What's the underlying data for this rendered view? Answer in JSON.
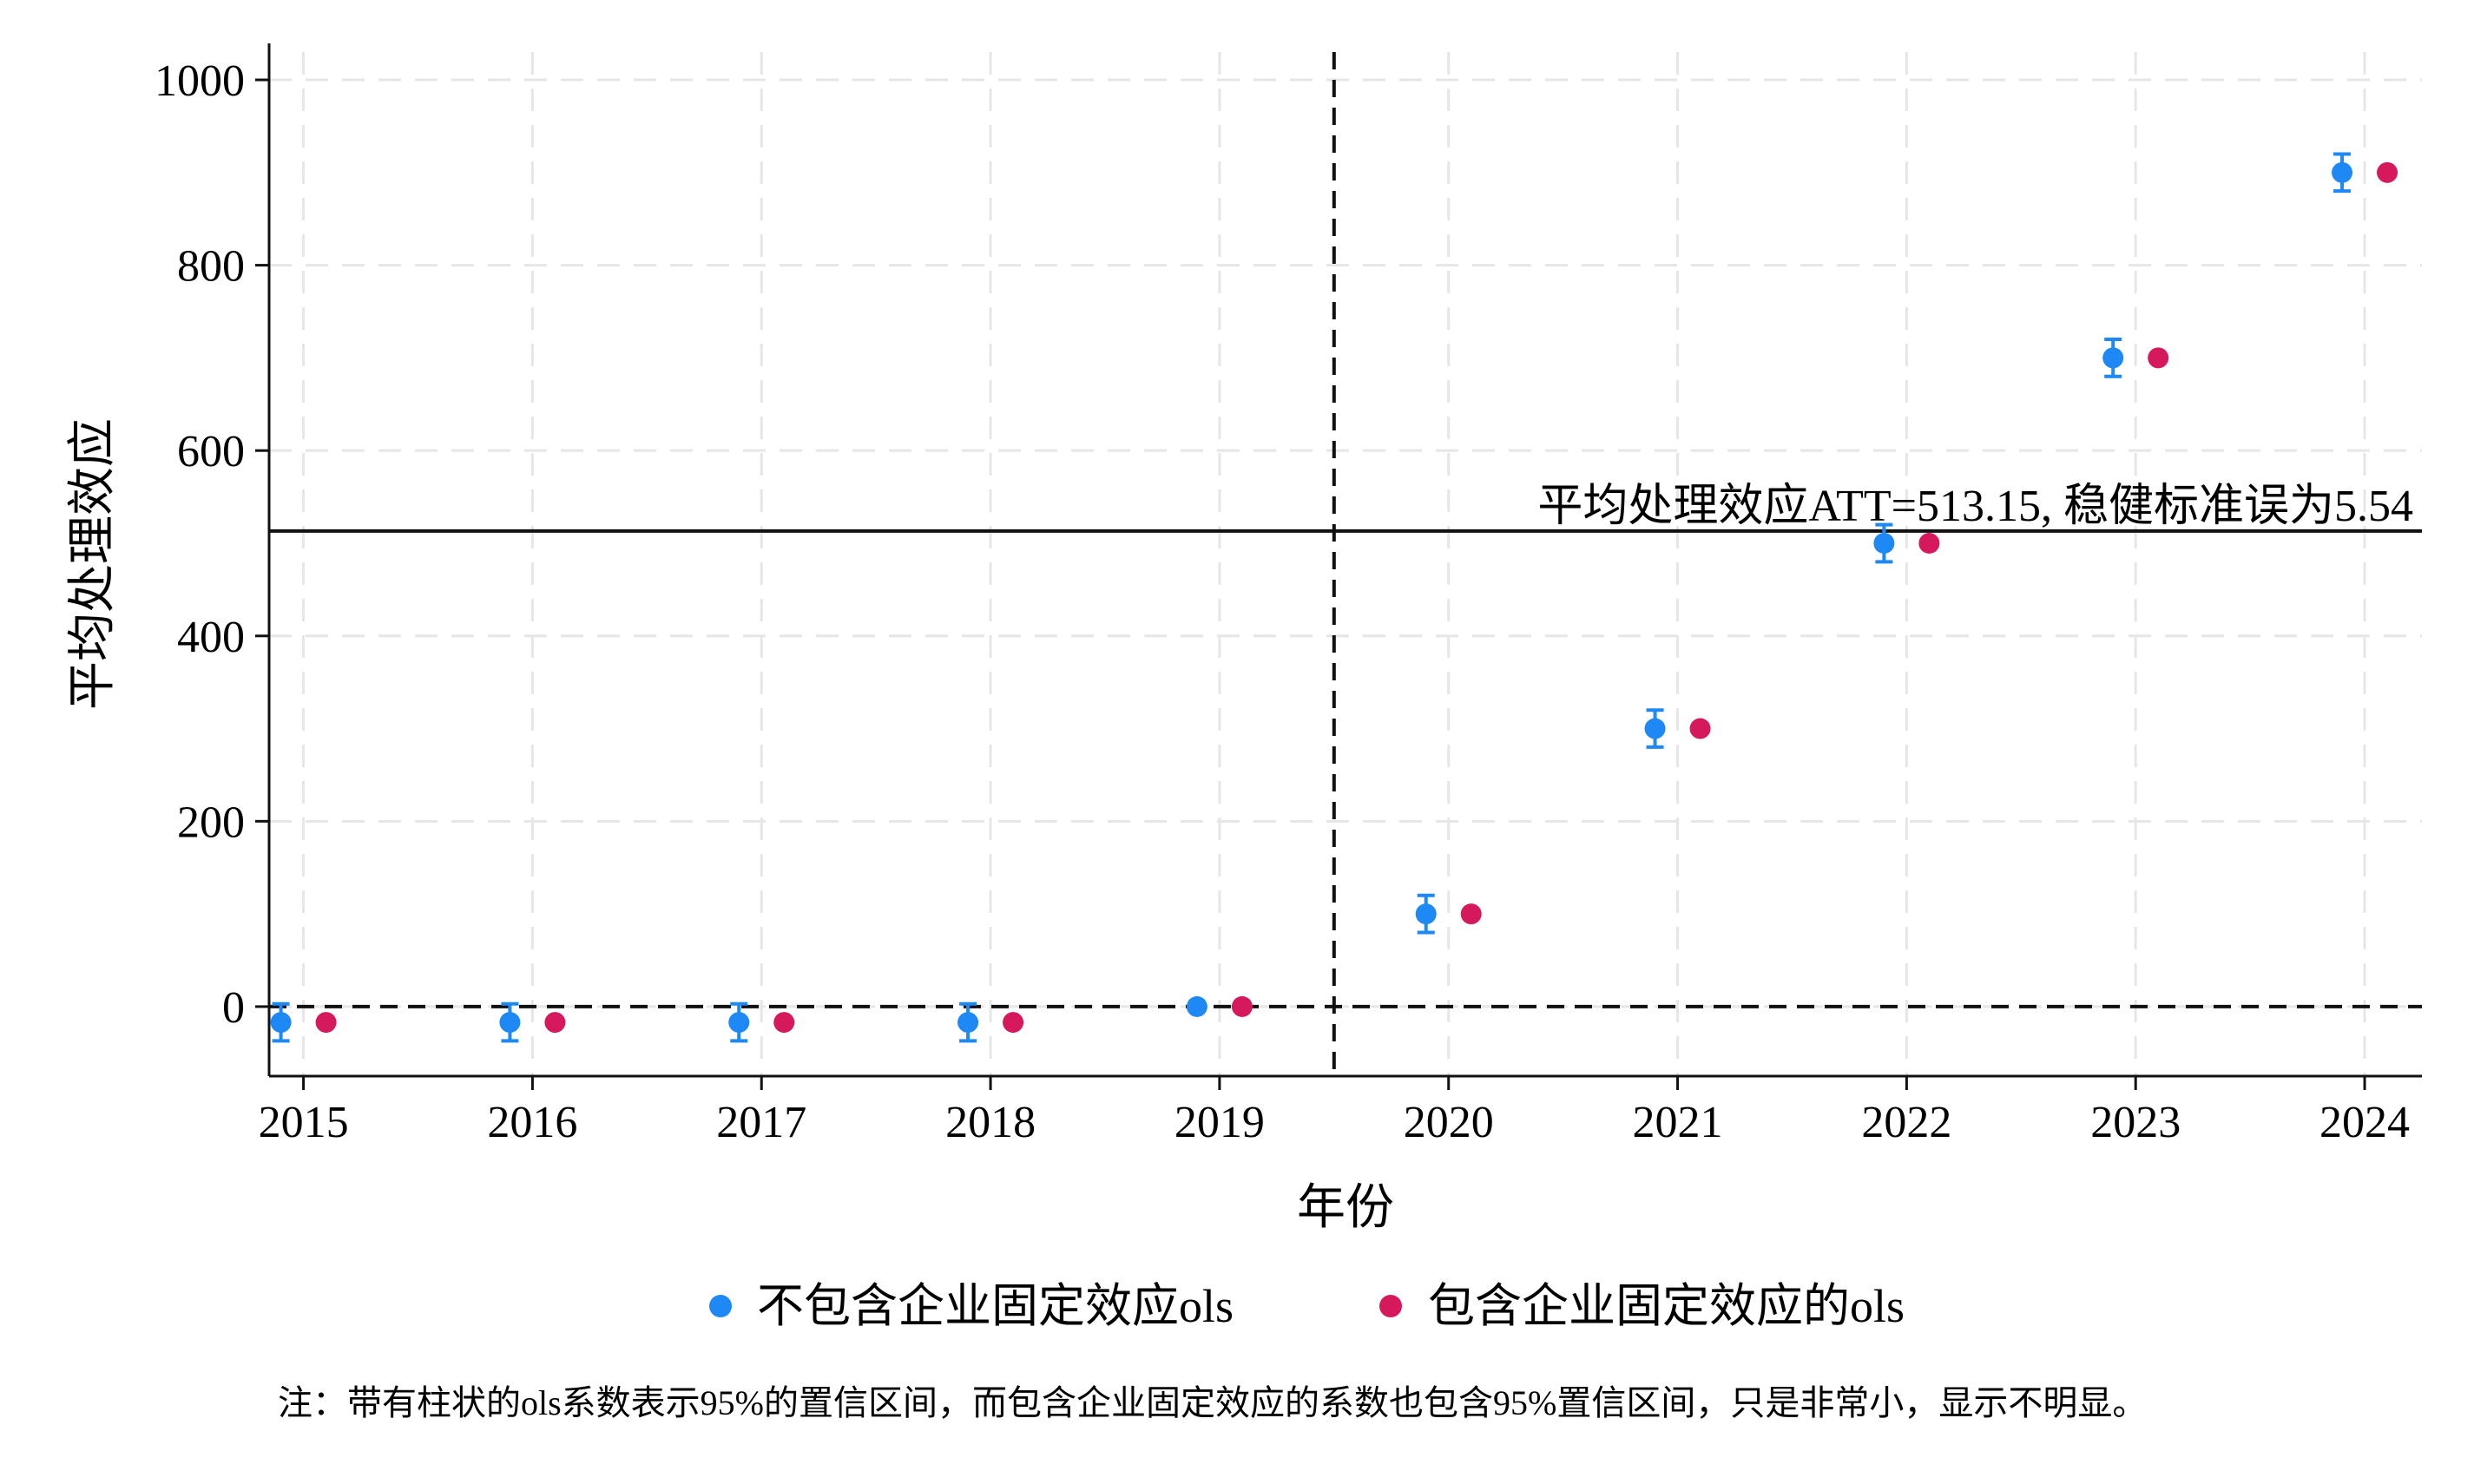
{
  "chart_data": {
    "type": "scatter",
    "xlabel": "年份",
    "ylabel": "平均处理效应",
    "x": [
      2015,
      2016,
      2017,
      2018,
      2019,
      2020,
      2021,
      2022,
      2023,
      2024
    ],
    "xlim": [
      2014.85,
      2024.25
    ],
    "ylim": [
      -75,
      1030
    ],
    "yticks": [
      0,
      200,
      400,
      600,
      800,
      1000
    ],
    "grid": true,
    "treatment_line_x": 2019.5,
    "series": [
      {
        "name": "不包含企业固定效应ols",
        "color": "#1e88f5",
        "values": [
          -17,
          -17,
          -17,
          -17,
          0,
          100,
          300,
          500,
          700,
          900
        ],
        "ci_low": [
          -37,
          -37,
          -37,
          -37,
          0,
          80,
          280,
          480,
          680,
          880
        ],
        "ci_high": [
          3,
          3,
          3,
          3,
          0,
          120,
          320,
          520,
          720,
          920
        ]
      },
      {
        "name": "包含企业固定效应的ols",
        "color": "#d6185c",
        "values": [
          -17,
          -17,
          -17,
          -17,
          0,
          100,
          300,
          500,
          700,
          900
        ]
      }
    ],
    "att": {
      "value": 513.15,
      "label": "平均处理效应ATT=513.15, 稳健标准误为5.54"
    },
    "legend_position": "bottom",
    "note": "注：带有柱状的ols系数表示95%的置信区间，而包含企业固定效应的系数也包含95%置信区间，只是非常小，显示不明显。"
  }
}
